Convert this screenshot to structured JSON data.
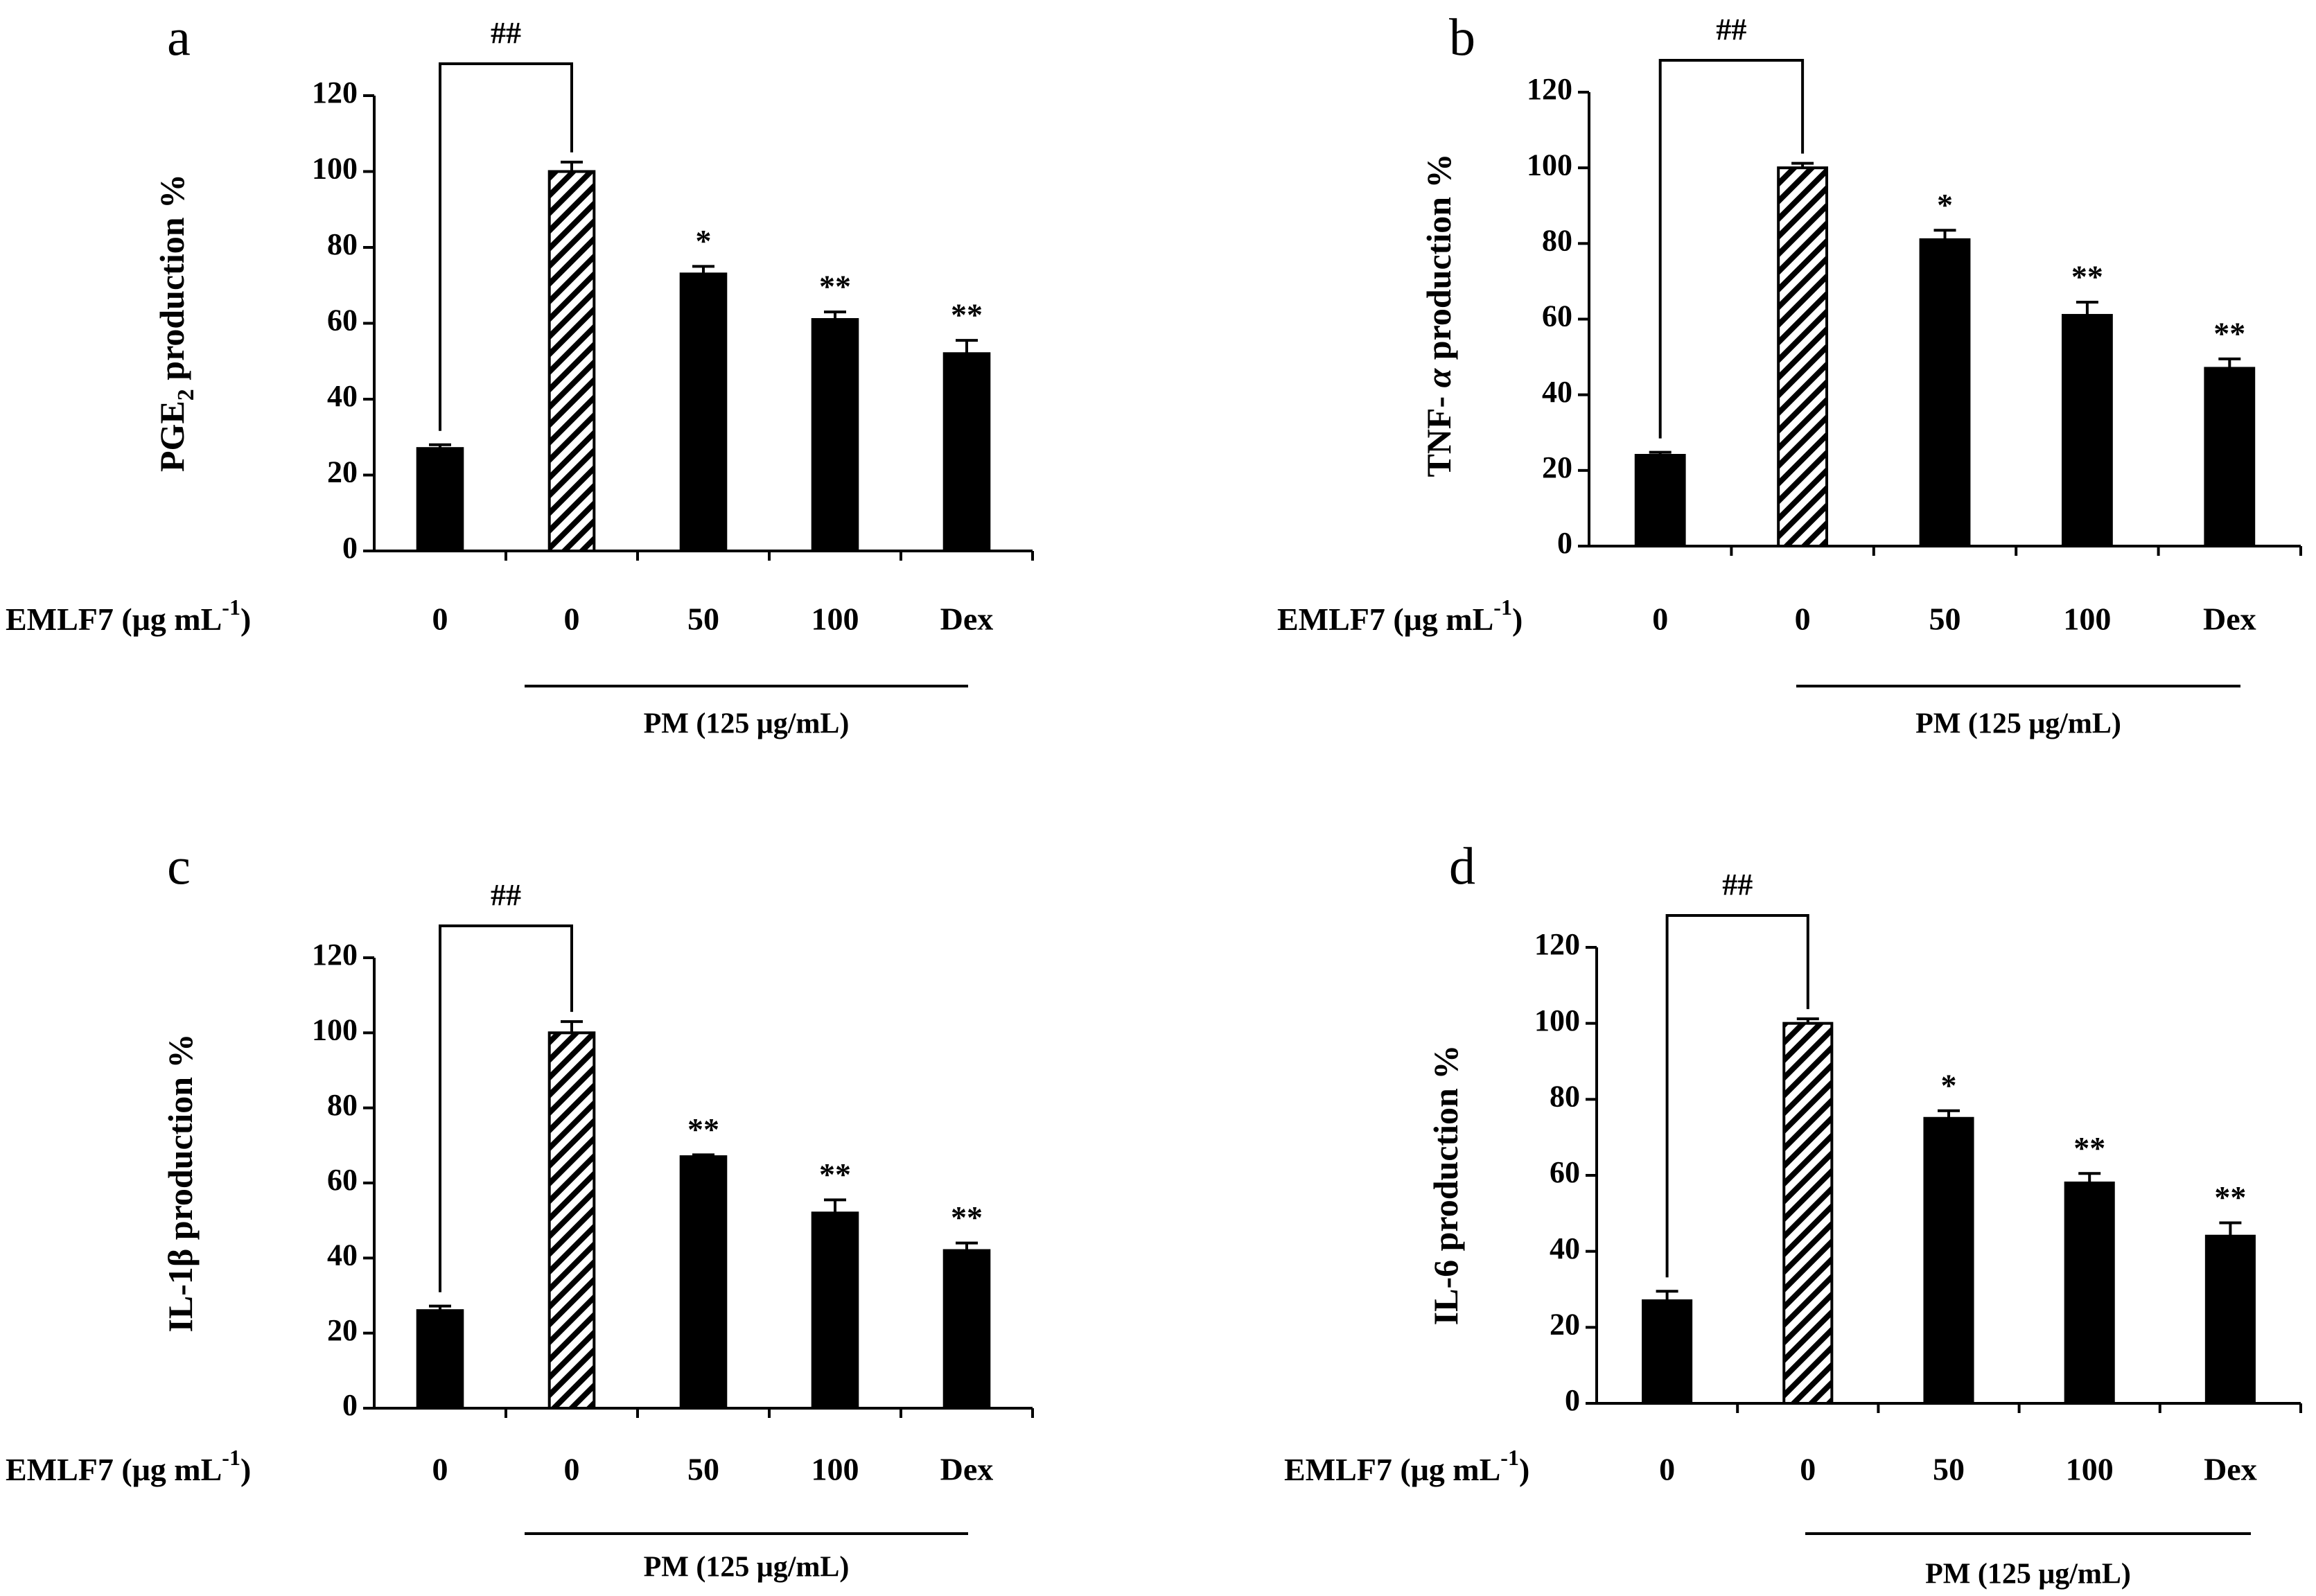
{
  "figure": {
    "treatment_label": "EMLF7 (μg mL",
    "treatment_label_sup": "-1",
    "treatment_label_end": ")",
    "pm_label": "PM (125 μg/mL)",
    "colors": {
      "bar": "#000000",
      "hatch": "#000000",
      "background": "#ffffff"
    }
  },
  "chart_data": [
    {
      "panel": "a",
      "type": "bar",
      "ylabel": "PGE2 production %",
      "ylabel_parts": [
        "PGE",
        "2",
        " production %"
      ],
      "yticks": [
        0,
        20,
        40,
        60,
        80,
        100,
        120
      ],
      "ylim": [
        0,
        120
      ],
      "categories": [
        "0",
        "0",
        "50",
        "100",
        "Dex"
      ],
      "values": [
        27,
        100,
        73,
        61,
        52
      ],
      "errors": [
        1,
        2.5,
        2,
        2,
        3.5
      ],
      "hatched": [
        false,
        true,
        false,
        false,
        false
      ],
      "significance": [
        "",
        "",
        "*",
        "**",
        "**"
      ],
      "bracket_label": "##"
    },
    {
      "panel": "b",
      "type": "bar",
      "ylabel": "TNF- α production %",
      "ylabel_parts": [
        "TNF- ",
        "α",
        " production %"
      ],
      "yticks": [
        0,
        20,
        40,
        60,
        80,
        100,
        120
      ],
      "ylim": [
        0,
        120
      ],
      "categories": [
        "0",
        "0",
        "50",
        "100",
        "Dex"
      ],
      "values": [
        24,
        100,
        81,
        61,
        47
      ],
      "errors": [
        0.8,
        1.2,
        2.5,
        3.5,
        2.5
      ],
      "hatched": [
        false,
        true,
        false,
        false,
        false
      ],
      "significance": [
        "",
        "",
        "*",
        "**",
        "**"
      ],
      "bracket_label": "##"
    },
    {
      "panel": "c",
      "type": "bar",
      "ylabel": "IL-1β production %",
      "ylabel_parts": [
        "IL-1β production %"
      ],
      "yticks": [
        0,
        20,
        40,
        60,
        80,
        100,
        120
      ],
      "ylim": [
        0,
        120
      ],
      "categories": [
        "0",
        "0",
        "50",
        "100",
        "Dex"
      ],
      "values": [
        26,
        100,
        67,
        52,
        42
      ],
      "errors": [
        1.2,
        3,
        0.5,
        3.5,
        2
      ],
      "hatched": [
        false,
        true,
        false,
        false,
        false
      ],
      "significance": [
        "",
        "",
        "**",
        "**",
        "**"
      ],
      "bracket_label": "##"
    },
    {
      "panel": "d",
      "type": "bar",
      "ylabel": "IL-6 production %",
      "ylabel_parts": [
        "IL-6 production %"
      ],
      "yticks": [
        0,
        20,
        40,
        60,
        80,
        100,
        120
      ],
      "ylim": [
        0,
        120
      ],
      "categories": [
        "0",
        "0",
        "50",
        "100",
        "Dex"
      ],
      "values": [
        27,
        100,
        75,
        58,
        44
      ],
      "errors": [
        2.5,
        1.2,
        2,
        2.5,
        3.5
      ],
      "hatched": [
        false,
        true,
        false,
        false,
        false
      ],
      "significance": [
        "",
        "",
        "*",
        "**",
        "**"
      ],
      "bracket_label": "##"
    }
  ]
}
